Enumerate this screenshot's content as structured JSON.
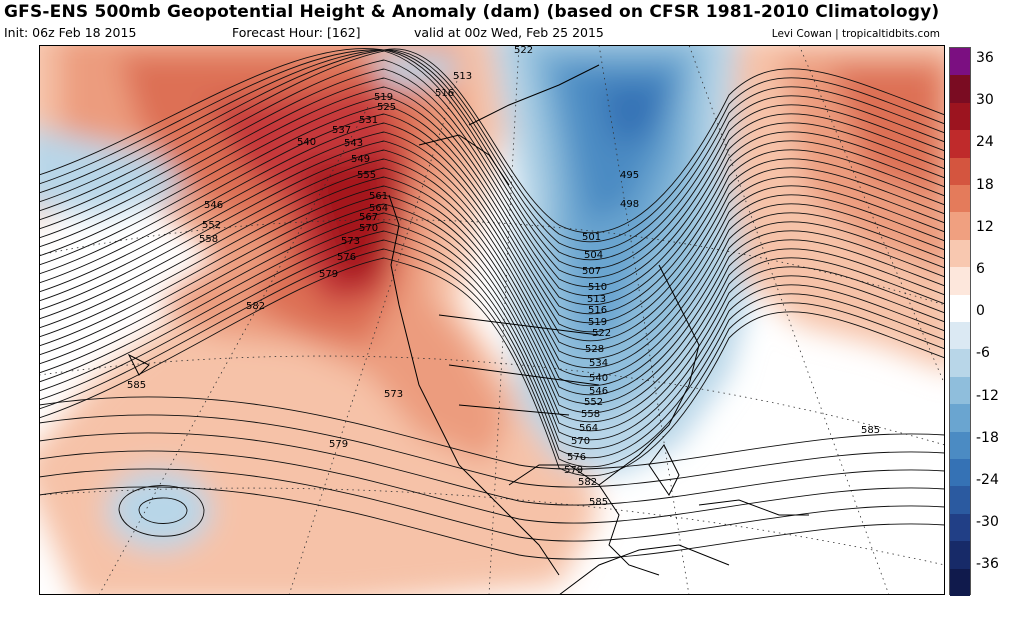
{
  "header": {
    "title": "GFS-ENS 500mb Geopotential Height & Anomaly (dam) (based on CFSR 1981-2010 Climatology)",
    "init": "Init: 06z Feb 18 2015",
    "forecast_hour": "Forecast Hour: [162]",
    "valid": "valid at 00z Wed, Feb 25 2015",
    "credit": "Levi Cowan | tropicaltidbits.com"
  },
  "colorbar": {
    "ticks": [
      "36",
      "30",
      "24",
      "18",
      "12",
      "6",
      "0",
      "-6",
      "-12",
      "-18",
      "-24",
      "-30",
      "-36"
    ],
    "colors": [
      "#7b0f81",
      "#7a0c22",
      "#9c141f",
      "#bf2a2b",
      "#d4553f",
      "#e47b5b",
      "#f0a080",
      "#f8c8b0",
      "#fde7dc",
      "#ffffff",
      "#dbe9f3",
      "#b8d6e8",
      "#8fbedc",
      "#6aa5d0",
      "#4b8bc3",
      "#3572b5",
      "#2b5aa0",
      "#213f86",
      "#172a68",
      "#101a4c"
    ],
    "units": "dam"
  },
  "contour_labels": [
    {
      "text": "522"
    },
    {
      "text": "513"
    },
    {
      "text": "519"
    },
    {
      "text": "516"
    },
    {
      "text": "525"
    },
    {
      "text": "531"
    },
    {
      "text": "537"
    },
    {
      "text": "540"
    },
    {
      "text": "543"
    },
    {
      "text": "549"
    },
    {
      "text": "555"
    },
    {
      "text": "546"
    },
    {
      "text": "552"
    },
    {
      "text": "558"
    },
    {
      "text": "561"
    },
    {
      "text": "564"
    },
    {
      "text": "567"
    },
    {
      "text": "570"
    },
    {
      "text": "573"
    },
    {
      "text": "576"
    },
    {
      "text": "579"
    },
    {
      "text": "582"
    },
    {
      "text": "585"
    },
    {
      "text": "573"
    },
    {
      "text": "579"
    },
    {
      "text": "495"
    },
    {
      "text": "498"
    },
    {
      "text": "501"
    },
    {
      "text": "504"
    },
    {
      "text": "507"
    },
    {
      "text": "510"
    },
    {
      "text": "513"
    },
    {
      "text": "516"
    },
    {
      "text": "519"
    },
    {
      "text": "522"
    },
    {
      "text": "528"
    },
    {
      "text": "534"
    },
    {
      "text": "540"
    },
    {
      "text": "546"
    },
    {
      "text": "552"
    },
    {
      "text": "558"
    },
    {
      "text": "564"
    },
    {
      "text": "570"
    },
    {
      "text": "576"
    },
    {
      "text": "579"
    },
    {
      "text": "582"
    },
    {
      "text": "585"
    },
    {
      "text": "585"
    }
  ]
}
